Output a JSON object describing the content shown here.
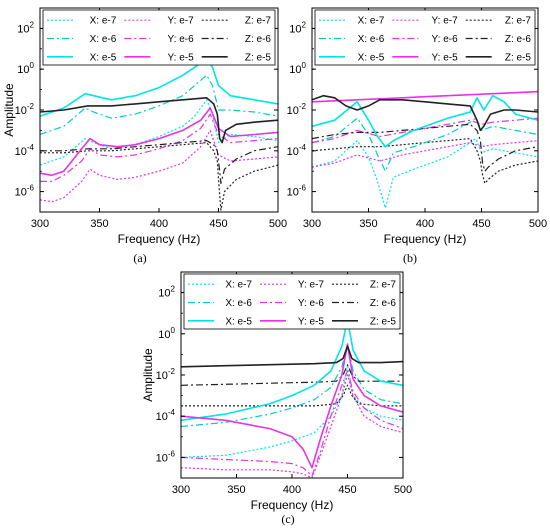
{
  "series_styles": [
    {
      "label": "X: e-7",
      "color": "#00e5e5",
      "dash": "2,2",
      "width": 1.2
    },
    {
      "label": "Y: e-7",
      "color": "#e633e6",
      "dash": "2,2",
      "width": 1.2
    },
    {
      "label": "Z: e-7",
      "color": "#222222",
      "dash": "2,2",
      "width": 1.2
    },
    {
      "label": "X: e-6",
      "color": "#00cccc",
      "dash": "7,3,2,3",
      "width": 1.2
    },
    {
      "label": "Y: e-6",
      "color": "#e633e6",
      "dash": "7,3,2,3",
      "width": 1.2
    },
    {
      "label": "Z: e-6",
      "color": "#222222",
      "dash": "7,3,2,3",
      "width": 1.2
    },
    {
      "label": "X: e-5",
      "color": "#00e5e5",
      "dash": "",
      "width": 1.6
    },
    {
      "label": "Y: e-5",
      "color": "#e633e6",
      "dash": "",
      "width": 1.6
    },
    {
      "label": "Z: e-5",
      "color": "#222222",
      "dash": "",
      "width": 1.6
    }
  ],
  "chart_data": [
    {
      "id": "a",
      "caption": "(a)",
      "type": "line",
      "xlabel": "Frequency (Hz)",
      "ylabel": "Amplitude",
      "xlim": [
        300,
        500
      ],
      "ylim_log10": [
        -7,
        3
      ],
      "yscale": "log",
      "xticks": [
        300,
        350,
        400,
        450,
        500
      ],
      "yticks": [
        "10^-6",
        "10^-4",
        "10^-2",
        "10^0",
        "10^2"
      ],
      "legend": "top",
      "series": [
        {
          "name": "X: e-7",
          "x": [
            300,
            320,
            338,
            345,
            360,
            380,
            400,
            420,
            430,
            440,
            445,
            450,
            460,
            480,
            500
          ],
          "log10_y": [
            -4.7,
            -4.3,
            -3.4,
            -3.6,
            -3.9,
            -3.7,
            -3.3,
            -2.8,
            -2.3,
            -1.5,
            -2.2,
            -3.6,
            -3.2,
            -3.3,
            -3.5
          ]
        },
        {
          "name": "Y: e-7",
          "x": [
            300,
            310,
            320,
            335,
            342,
            350,
            365,
            380,
            400,
            420,
            435,
            443,
            450,
            460,
            480,
            500
          ],
          "log10_y": [
            -6.4,
            -6.5,
            -6.3,
            -5.5,
            -4.9,
            -5.2,
            -5.4,
            -5.3,
            -5.0,
            -4.6,
            -3.8,
            -3.0,
            -4.2,
            -4.5,
            -4.4,
            -4.3
          ]
        },
        {
          "name": "Z: e-7",
          "x": [
            300,
            320,
            340,
            360,
            380,
            400,
            420,
            440,
            446,
            449,
            451,
            452,
            455,
            465,
            480,
            500
          ],
          "log10_y": [
            -4.1,
            -4.1,
            -4.0,
            -4.0,
            -3.9,
            -3.8,
            -3.7,
            -3.6,
            -4.0,
            -4.5,
            -6.2,
            -6.9,
            -6.0,
            -5.4,
            -5.0,
            -4.7
          ]
        },
        {
          "name": "X: e-6",
          "x": [
            300,
            320,
            338,
            345,
            360,
            380,
            400,
            420,
            430,
            440,
            445,
            450,
            460,
            480,
            500
          ],
          "log10_y": [
            -3.2,
            -2.8,
            -1.9,
            -2.1,
            -2.4,
            -2.2,
            -1.8,
            -1.3,
            -0.8,
            -0.3,
            -0.8,
            -2.0,
            -2.0,
            -2.1,
            -2.3
          ]
        },
        {
          "name": "Y: e-6",
          "x": [
            300,
            310,
            320,
            335,
            342,
            350,
            365,
            380,
            400,
            420,
            435,
            443,
            450,
            460,
            480,
            500
          ],
          "log10_y": [
            -5.5,
            -5.5,
            -5.2,
            -4.5,
            -3.9,
            -4.2,
            -4.3,
            -4.2,
            -3.9,
            -3.5,
            -2.9,
            -2.2,
            -3.2,
            -3.6,
            -3.5,
            -3.4
          ]
        },
        {
          "name": "Z: e-6",
          "x": [
            300,
            320,
            340,
            360,
            380,
            400,
            420,
            440,
            446,
            449,
            451,
            452,
            455,
            465,
            480,
            500
          ],
          "log10_y": [
            -4.0,
            -4.0,
            -3.9,
            -3.9,
            -3.8,
            -3.7,
            -3.6,
            -3.5,
            -3.7,
            -4.0,
            -5.0,
            -5.6,
            -4.9,
            -4.4,
            -4.0,
            -3.8
          ]
        },
        {
          "name": "X: e-5",
          "x": [
            300,
            320,
            338,
            345,
            360,
            380,
            400,
            420,
            430,
            440,
            445,
            450,
            460,
            480,
            500
          ],
          "log10_y": [
            -2.3,
            -1.9,
            -1.2,
            -1.3,
            -1.5,
            -1.3,
            -0.9,
            -0.3,
            0.1,
            0.5,
            0.1,
            -0.8,
            -1.3,
            -1.5,
            -1.7
          ]
        },
        {
          "name": "Y: e-5",
          "x": [
            300,
            310,
            320,
            335,
            342,
            350,
            365,
            380,
            400,
            420,
            435,
            443,
            450,
            460,
            480,
            500
          ],
          "log10_y": [
            -5.1,
            -5.2,
            -5.0,
            -3.9,
            -3.4,
            -3.7,
            -3.8,
            -3.7,
            -3.4,
            -3.0,
            -2.5,
            -1.9,
            -2.9,
            -3.3,
            -3.2,
            -3.1
          ]
        },
        {
          "name": "Z: e-5",
          "x": [
            300,
            320,
            340,
            360,
            380,
            400,
            420,
            440,
            446,
            449,
            451,
            453,
            456,
            465,
            480,
            500
          ],
          "log10_y": [
            -2.1,
            -2.0,
            -1.8,
            -1.8,
            -1.7,
            -1.6,
            -1.5,
            -1.4,
            -1.7,
            -2.2,
            -3.4,
            -3.6,
            -3.0,
            -2.7,
            -2.6,
            -2.5
          ]
        }
      ]
    },
    {
      "id": "b",
      "caption": "(b)",
      "type": "line",
      "xlabel": "Frequency (Hz)",
      "ylabel": "",
      "xlim": [
        300,
        500
      ],
      "ylim_log10": [
        -7,
        3
      ],
      "yscale": "log",
      "xticks": [
        300,
        350,
        400,
        450,
        500
      ],
      "yticks": [
        "10^-6",
        "10^-4",
        "10^-2",
        "10^0",
        "10^2"
      ],
      "legend": "top",
      "series": [
        {
          "name": "X: e-7",
          "x": [
            300,
            320,
            340,
            350,
            358,
            365,
            372,
            390,
            420,
            440,
            445,
            450,
            460,
            480,
            500
          ],
          "log10_y": [
            -4.8,
            -4.5,
            -3.5,
            -4.3,
            -5.5,
            -6.8,
            -5.3,
            -4.9,
            -4.3,
            -3.6,
            -3.4,
            -4.1,
            -3.9,
            -4.1,
            -4.3
          ]
        },
        {
          "name": "Y: e-7",
          "x": [
            300,
            320,
            340,
            360,
            380,
            400,
            420,
            440,
            450,
            460,
            480,
            500
          ],
          "log10_y": [
            -4.8,
            -4.6,
            -4.2,
            -4.5,
            -4.2,
            -4.0,
            -3.8,
            -3.6,
            -3.8,
            -3.7,
            -3.6,
            -3.5
          ]
        },
        {
          "name": "Z: e-7",
          "x": [
            300,
            320,
            340,
            360,
            380,
            400,
            420,
            440,
            446,
            449,
            451,
            453,
            456,
            465,
            480,
            500
          ],
          "log10_y": [
            -4.0,
            -3.9,
            -3.8,
            -3.8,
            -3.7,
            -3.6,
            -3.5,
            -3.4,
            -4.0,
            -4.5,
            -5.2,
            -5.6,
            -5.4,
            -5.0,
            -4.7,
            -4.5
          ]
        },
        {
          "name": "X: e-6",
          "x": [
            300,
            320,
            340,
            350,
            358,
            365,
            372,
            390,
            420,
            440,
            445,
            450,
            460,
            480,
            500
          ],
          "log10_y": [
            -3.6,
            -3.3,
            -2.4,
            -3.2,
            -4.2,
            -5.0,
            -4.1,
            -3.8,
            -3.2,
            -2.6,
            -2.4,
            -3.0,
            -2.8,
            -3.0,
            -3.2
          ]
        },
        {
          "name": "Y: e-6",
          "x": [
            300,
            320,
            340,
            360,
            380,
            400,
            420,
            440,
            450,
            460,
            480,
            500
          ],
          "log10_y": [
            -3.6,
            -3.4,
            -3.0,
            -3.3,
            -3.1,
            -2.9,
            -2.7,
            -2.5,
            -2.7,
            -2.6,
            -2.5,
            -2.4
          ]
        },
        {
          "name": "Z: e-6",
          "x": [
            300,
            320,
            340,
            360,
            380,
            400,
            420,
            440,
            446,
            449,
            451,
            453,
            456,
            465,
            480,
            500
          ],
          "log10_y": [
            -3.4,
            -3.2,
            -3.1,
            -3.1,
            -3.0,
            -2.9,
            -2.8,
            -2.7,
            -3.0,
            -3.5,
            -4.6,
            -5.0,
            -4.8,
            -4.4,
            -4.0,
            -3.8
          ]
        },
        {
          "name": "X: e-5",
          "x": [
            300,
            320,
            340,
            350,
            358,
            365,
            372,
            390,
            420,
            440,
            446,
            452,
            460,
            470,
            480,
            500
          ],
          "log10_y": [
            -2.8,
            -2.5,
            -1.6,
            -2.5,
            -3.3,
            -3.8,
            -3.5,
            -3.0,
            -2.4,
            -2.1,
            -1.4,
            -2.0,
            -1.3,
            -1.6,
            -2.2,
            -2.5
          ]
        },
        {
          "name": "Y: e-5",
          "x": [
            300,
            320,
            340,
            360,
            380,
            400,
            420,
            440,
            460,
            480,
            500
          ],
          "log10_y": [
            -1.6,
            -1.55,
            -1.5,
            -1.45,
            -1.4,
            -1.35,
            -1.3,
            -1.25,
            -1.2,
            -1.15,
            -1.1
          ]
        },
        {
          "name": "Z: e-5",
          "x": [
            300,
            310,
            320,
            330,
            340,
            350,
            360,
            380,
            400,
            420,
            440,
            446,
            449,
            452,
            458,
            470,
            480,
            500
          ],
          "log10_y": [
            -1.5,
            -1.3,
            -1.4,
            -1.8,
            -2.0,
            -1.8,
            -1.5,
            -1.5,
            -1.6,
            -1.7,
            -1.8,
            -2.5,
            -3.0,
            -2.8,
            -2.2,
            -2.0,
            -2.0,
            -2.1
          ]
        }
      ]
    },
    {
      "id": "c",
      "caption": "(c)",
      "type": "line",
      "xlabel": "Frequency (Hz)",
      "ylabel": "Amplitude",
      "xlim": [
        300,
        500
      ],
      "ylim_log10": [
        -7,
        3
      ],
      "yscale": "log",
      "xticks": [
        300,
        350,
        400,
        450,
        500
      ],
      "yticks": [
        "10^-6",
        "10^-4",
        "10^-2",
        "10^0",
        "10^2"
      ],
      "legend": "top",
      "series": [
        {
          "name": "X: e-7",
          "x": [
            300,
            340,
            380,
            400,
            420,
            435,
            445,
            450,
            455,
            465,
            480,
            500
          ],
          "log10_y": [
            -6.0,
            -5.9,
            -5.5,
            -5.2,
            -4.8,
            -4.0,
            -3.0,
            -1.5,
            -3.0,
            -3.6,
            -4.0,
            -4.2
          ]
        },
        {
          "name": "Y: e-7",
          "x": [
            300,
            340,
            380,
            400,
            410,
            418,
            425,
            435,
            445,
            450,
            455,
            465,
            480,
            500
          ],
          "log10_y": [
            -6.5,
            -6.6,
            -6.6,
            -6.7,
            -6.8,
            -7.0,
            -6.0,
            -4.5,
            -3.0,
            -2.0,
            -3.0,
            -4.0,
            -4.5,
            -4.8
          ]
        },
        {
          "name": "Z: e-7",
          "x": [
            300,
            340,
            380,
            420,
            440,
            446,
            450,
            454,
            460,
            480,
            500
          ],
          "log10_y": [
            -3.5,
            -3.5,
            -3.5,
            -3.5,
            -3.4,
            -3.0,
            -2.5,
            -3.0,
            -3.4,
            -3.5,
            -3.5
          ]
        },
        {
          "name": "X: e-6",
          "x": [
            300,
            340,
            380,
            400,
            420,
            435,
            445,
            450,
            455,
            465,
            480,
            500
          ],
          "log10_y": [
            -4.5,
            -4.3,
            -3.9,
            -3.6,
            -3.2,
            -2.6,
            -1.6,
            -0.5,
            -1.8,
            -2.7,
            -3.2,
            -3.4
          ]
        },
        {
          "name": "Y: e-6",
          "x": [
            300,
            340,
            380,
            400,
            410,
            418,
            425,
            435,
            445,
            450,
            455,
            465,
            480,
            500
          ],
          "log10_y": [
            -6.0,
            -6.1,
            -6.2,
            -6.3,
            -6.5,
            -6.9,
            -5.8,
            -4.0,
            -2.5,
            -1.8,
            -2.8,
            -3.6,
            -4.2,
            -4.6
          ]
        },
        {
          "name": "Z: e-6",
          "x": [
            300,
            340,
            380,
            420,
            440,
            446,
            450,
            454,
            460,
            480,
            500
          ],
          "log10_y": [
            -2.5,
            -2.45,
            -2.4,
            -2.35,
            -2.3,
            -2.0,
            -1.5,
            -2.0,
            -2.3,
            -2.3,
            -2.3
          ]
        },
        {
          "name": "X: e-5",
          "x": [
            300,
            340,
            380,
            400,
            420,
            435,
            445,
            450,
            455,
            465,
            480,
            500
          ],
          "log10_y": [
            -4.2,
            -3.9,
            -3.4,
            -3.0,
            -2.5,
            -1.8,
            -0.6,
            0.7,
            -0.8,
            -1.8,
            -2.3,
            -2.5
          ]
        },
        {
          "name": "Y: e-5",
          "x": [
            300,
            340,
            380,
            400,
            410,
            418,
            425,
            435,
            445,
            450,
            455,
            465,
            480,
            500
          ],
          "log10_y": [
            -4.0,
            -4.2,
            -4.6,
            -5.0,
            -5.6,
            -6.5,
            -5.2,
            -3.5,
            -2.0,
            -0.5,
            -2.2,
            -3.0,
            -3.5,
            -3.8
          ]
        },
        {
          "name": "Z: e-5",
          "x": [
            300,
            340,
            380,
            420,
            440,
            446,
            450,
            454,
            460,
            480,
            500
          ],
          "log10_y": [
            -1.6,
            -1.55,
            -1.5,
            -1.45,
            -1.4,
            -1.2,
            -0.6,
            -1.2,
            -1.4,
            -1.4,
            -1.35
          ]
        }
      ]
    }
  ]
}
